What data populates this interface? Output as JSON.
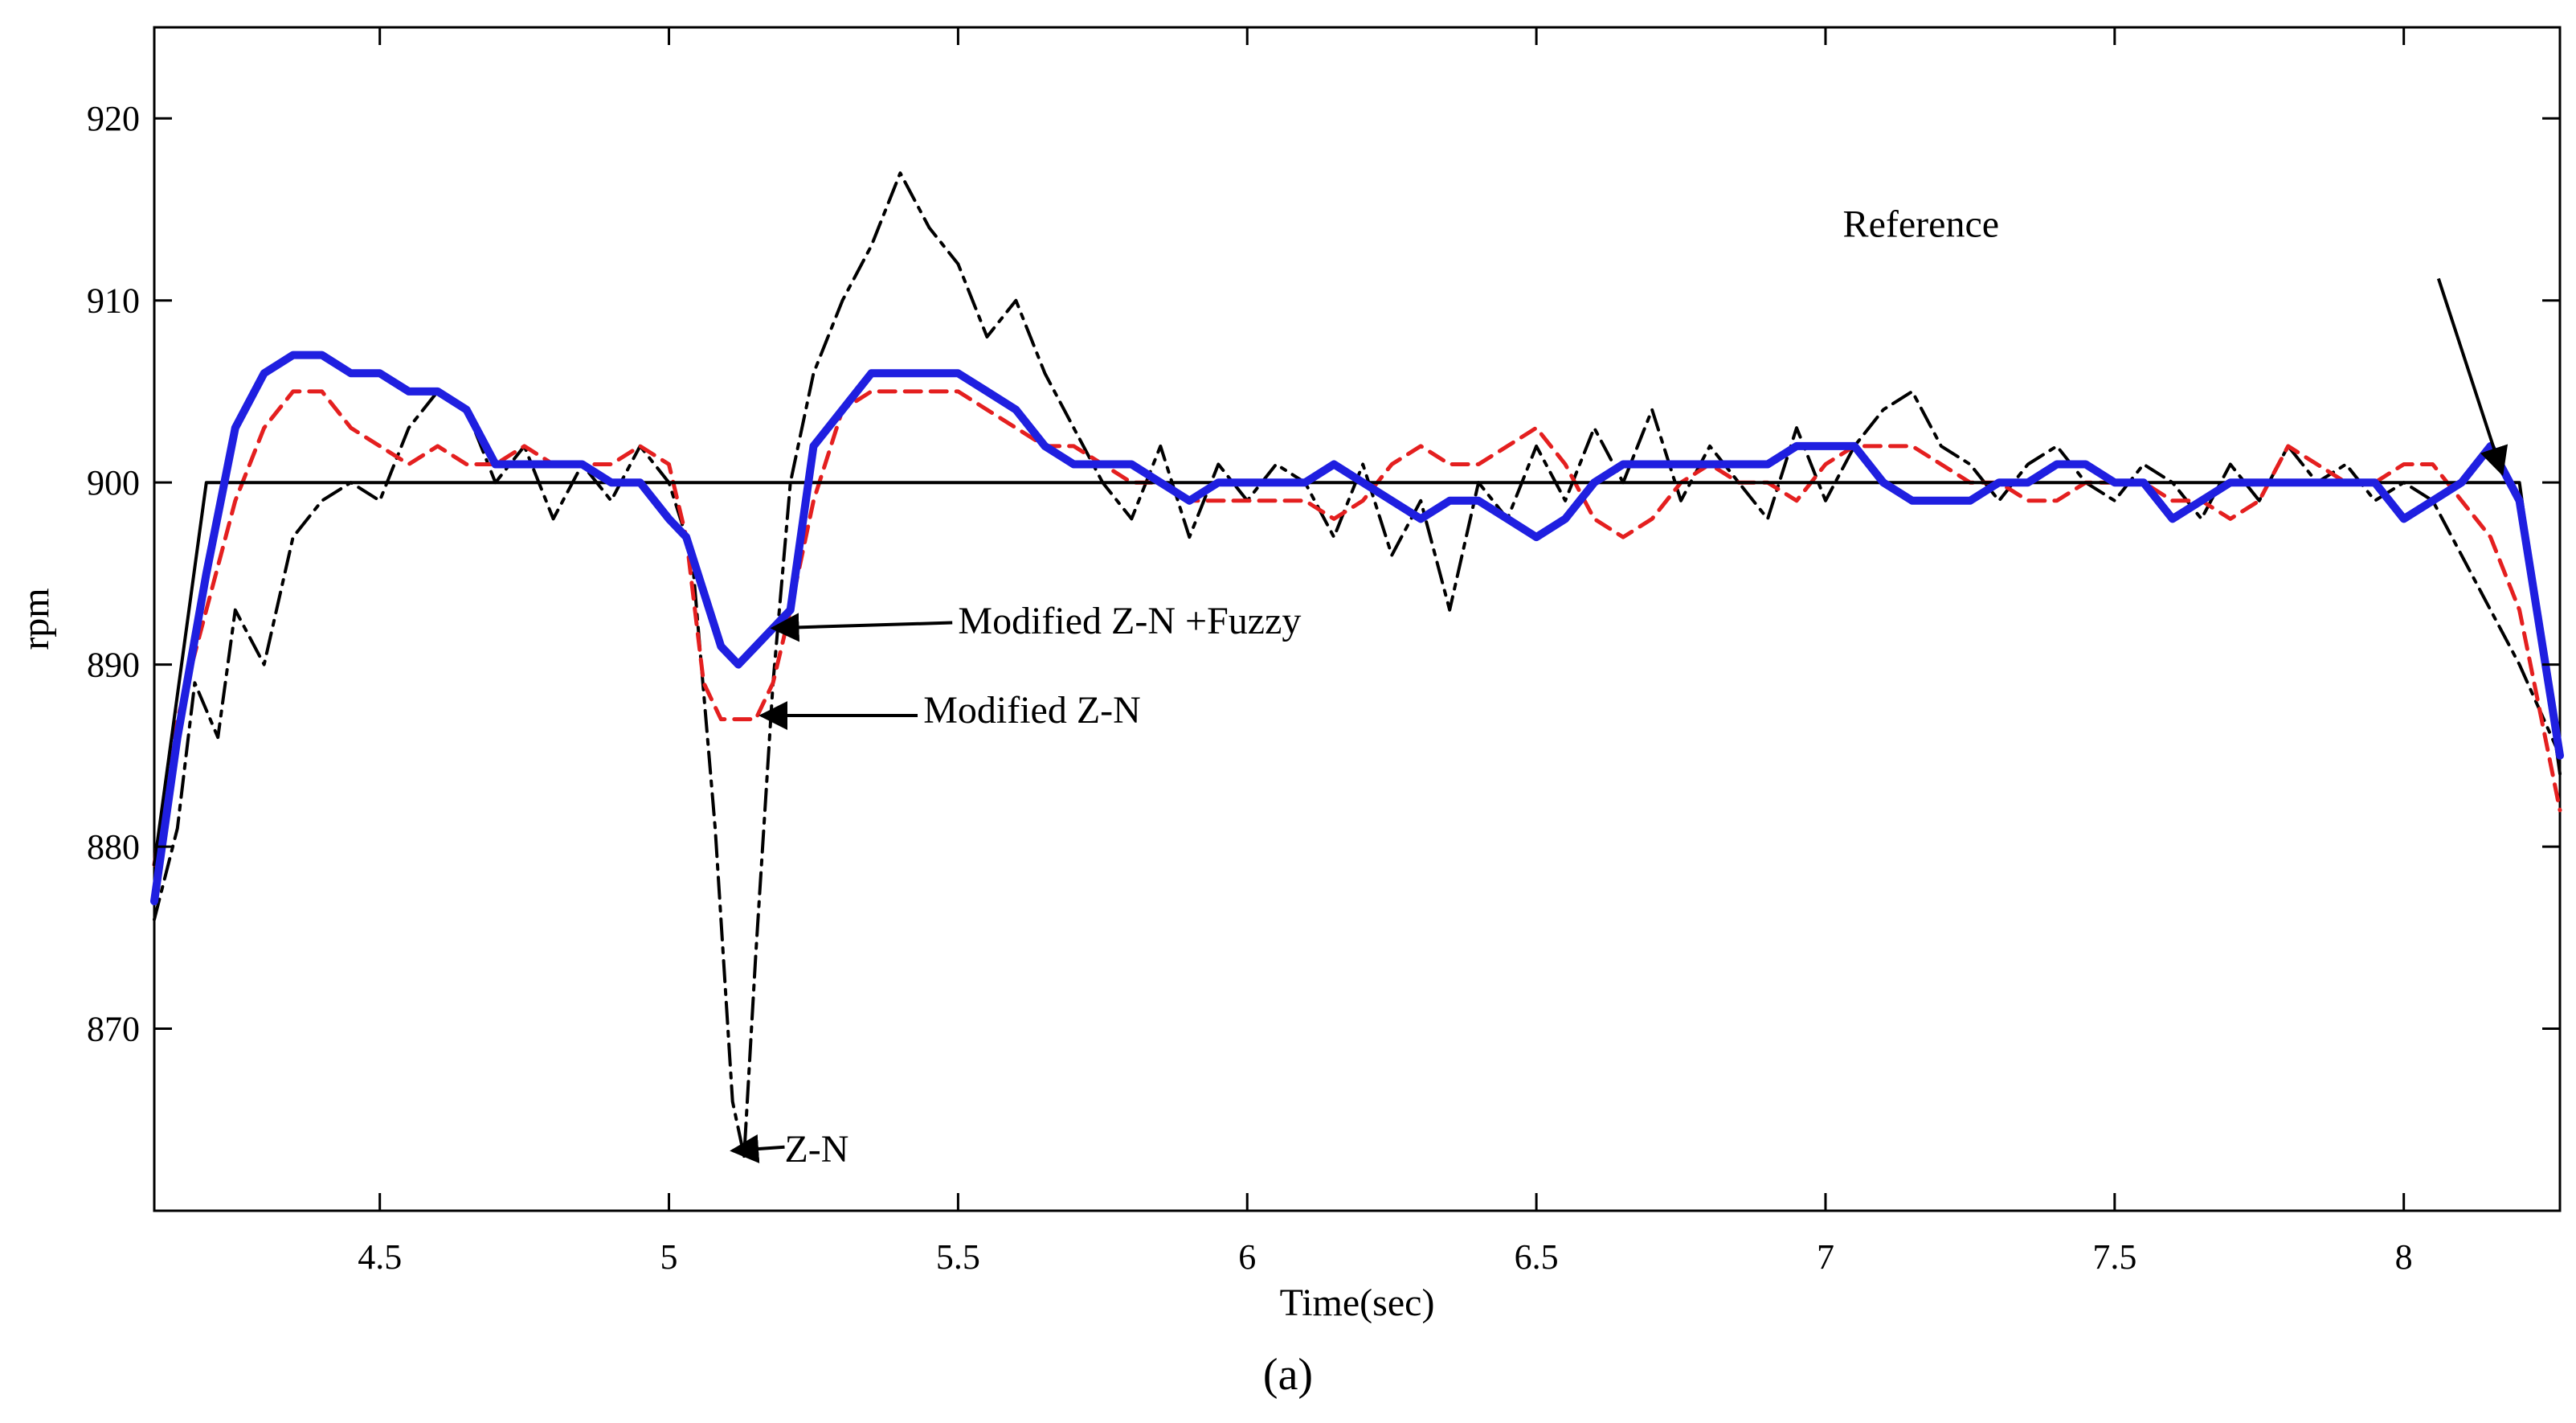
{
  "chart_data": {
    "type": "line",
    "title": "",
    "xlabel": "Time(sec)",
    "ylabel": "rpm",
    "caption": "(a)",
    "xlim": [
      4.11,
      8.27
    ],
    "ylim": [
      860,
      925
    ],
    "grid": false,
    "xticks": [
      4.5,
      5,
      5.5,
      6,
      6.5,
      7,
      7.5,
      8
    ],
    "xtick_labels": [
      "4.5",
      "5",
      "5.5",
      "6",
      "6.5",
      "7",
      "7.5",
      "8"
    ],
    "yticks": [
      870,
      880,
      890,
      900,
      910,
      920
    ],
    "ytick_labels": [
      "870",
      "880",
      "890",
      "900",
      "910",
      "920"
    ],
    "series": [
      {
        "name": "Reference",
        "color": "#000000",
        "style": "solid",
        "x": [
          4.11,
          4.2,
          8.2,
          8.27
        ],
        "y": [
          879,
          900,
          900,
          884
        ]
      },
      {
        "name": "Z-N",
        "color": "#000000",
        "style": "dashdot",
        "x": [
          4.11,
          4.15,
          4.18,
          4.22,
          4.25,
          4.3,
          4.35,
          4.4,
          4.45,
          4.5,
          4.55,
          4.6,
          4.65,
          4.7,
          4.75,
          4.8,
          4.85,
          4.9,
          4.95,
          5.0,
          5.04,
          5.08,
          5.11,
          5.13,
          5.15,
          5.18,
          5.21,
          5.25,
          5.3,
          5.35,
          5.4,
          5.45,
          5.5,
          5.55,
          5.6,
          5.65,
          5.7,
          5.75,
          5.8,
          5.85,
          5.9,
          5.95,
          6.0,
          6.05,
          6.1,
          6.15,
          6.2,
          6.25,
          6.3,
          6.35,
          6.4,
          6.45,
          6.5,
          6.55,
          6.6,
          6.65,
          6.7,
          6.75,
          6.8,
          6.85,
          6.9,
          6.95,
          7.0,
          7.05,
          7.1,
          7.15,
          7.2,
          7.25,
          7.3,
          7.35,
          7.4,
          7.45,
          7.5,
          7.55,
          7.6,
          7.65,
          7.7,
          7.75,
          7.8,
          7.85,
          7.9,
          7.95,
          8.0,
          8.05,
          8.1,
          8.15,
          8.2,
          8.27
        ],
        "y": [
          876,
          881,
          889,
          886,
          893,
          890,
          897,
          899,
          900,
          899,
          903,
          905,
          904,
          900,
          902,
          898,
          901,
          899,
          902,
          900,
          896,
          881,
          866,
          863,
          874,
          889,
          900,
          906,
          910,
          913,
          917,
          914,
          912,
          908,
          910,
          906,
          903,
          900,
          898,
          902,
          897,
          901,
          899,
          901,
          900,
          897,
          901,
          896,
          899,
          893,
          900,
          898,
          902,
          899,
          903,
          900,
          904,
          899,
          902,
          900,
          898,
          903,
          899,
          902,
          904,
          905,
          902,
          901,
          899,
          901,
          902,
          900,
          899,
          901,
          900,
          898,
          901,
          899,
          902,
          900,
          901,
          899,
          900,
          899,
          896,
          893,
          890,
          885
        ]
      },
      {
        "name": "Modified Z-N",
        "color": "#e41f1f",
        "style": "dashed",
        "x": [
          4.11,
          4.15,
          4.2,
          4.25,
          4.3,
          4.35,
          4.4,
          4.45,
          4.5,
          4.55,
          4.6,
          4.65,
          4.7,
          4.75,
          4.8,
          4.85,
          4.9,
          4.95,
          5.0,
          5.03,
          5.06,
          5.09,
          5.12,
          5.15,
          5.18,
          5.21,
          5.25,
          5.3,
          5.35,
          5.4,
          5.45,
          5.5,
          5.55,
          5.6,
          5.65,
          5.7,
          5.75,
          5.8,
          5.85,
          5.9,
          5.95,
          6.0,
          6.05,
          6.1,
          6.15,
          6.2,
          6.25,
          6.3,
          6.35,
          6.4,
          6.45,
          6.5,
          6.55,
          6.6,
          6.65,
          6.7,
          6.75,
          6.8,
          6.85,
          6.9,
          6.95,
          7.0,
          7.05,
          7.1,
          7.15,
          7.2,
          7.25,
          7.3,
          7.35,
          7.4,
          7.45,
          7.5,
          7.55,
          7.6,
          7.65,
          7.7,
          7.75,
          7.8,
          7.85,
          7.9,
          7.95,
          8.0,
          8.05,
          8.1,
          8.15,
          8.2,
          8.27
        ],
        "y": [
          879,
          887,
          893,
          899,
          903,
          905,
          905,
          903,
          902,
          901,
          902,
          901,
          901,
          902,
          901,
          901,
          901,
          902,
          901,
          897,
          889,
          887,
          887,
          887,
          889,
          893,
          899,
          904,
          905,
          905,
          905,
          905,
          904,
          903,
          902,
          902,
          901,
          900,
          900,
          899,
          899,
          899,
          899,
          899,
          898,
          899,
          901,
          902,
          901,
          901,
          902,
          903,
          901,
          898,
          897,
          898,
          900,
          901,
          900,
          900,
          899,
          901,
          902,
          902,
          902,
          901,
          900,
          900,
          899,
          899,
          900,
          900,
          900,
          899,
          899,
          898,
          899,
          902,
          901,
          900,
          900,
          901,
          901,
          899,
          897,
          893,
          882
        ]
      },
      {
        "name": "Modified Z-N +Fuzzy",
        "color": "#1f1fe0",
        "style": "solid-thick",
        "x": [
          4.11,
          4.15,
          4.2,
          4.25,
          4.3,
          4.35,
          4.4,
          4.45,
          4.5,
          4.55,
          4.6,
          4.65,
          4.7,
          4.75,
          4.8,
          4.85,
          4.9,
          4.95,
          5.0,
          5.03,
          5.06,
          5.09,
          5.12,
          5.15,
          5.18,
          5.21,
          5.25,
          5.3,
          5.35,
          5.4,
          5.45,
          5.5,
          5.55,
          5.6,
          5.65,
          5.7,
          5.75,
          5.8,
          5.85,
          5.9,
          5.95,
          6.0,
          6.05,
          6.1,
          6.15,
          6.2,
          6.25,
          6.3,
          6.35,
          6.4,
          6.45,
          6.5,
          6.55,
          6.6,
          6.65,
          6.7,
          6.75,
          6.8,
          6.85,
          6.9,
          6.95,
          7.0,
          7.05,
          7.1,
          7.15,
          7.2,
          7.25,
          7.3,
          7.35,
          7.4,
          7.45,
          7.5,
          7.55,
          7.6,
          7.65,
          7.7,
          7.75,
          7.8,
          7.85,
          7.9,
          7.95,
          8.0,
          8.05,
          8.1,
          8.15,
          8.2,
          8.27
        ],
        "y": [
          877,
          886,
          895,
          903,
          906,
          907,
          907,
          906,
          906,
          905,
          905,
          904,
          901,
          901,
          901,
          901,
          900,
          900,
          898,
          897,
          894,
          891,
          890,
          891,
          892,
          893,
          902,
          904,
          906,
          906,
          906,
          906,
          905,
          904,
          902,
          901,
          901,
          901,
          900,
          899,
          900,
          900,
          900,
          900,
          901,
          900,
          899,
          898,
          899,
          899,
          898,
          897,
          898,
          900,
          901,
          901,
          901,
          901,
          901,
          901,
          902,
          902,
          902,
          900,
          899,
          899,
          899,
          900,
          900,
          901,
          901,
          900,
          900,
          898,
          899,
          900,
          900,
          900,
          900,
          900,
          900,
          898,
          899,
          900,
          902,
          899,
          885
        ]
      }
    ],
    "annotations": [
      {
        "text": "Reference",
        "x": 7.03,
        "y": 913.5,
        "arrow_to": [
          8.17,
          900.5
        ],
        "arrow_from": [
          8.06,
          911.2
        ]
      },
      {
        "text": "Modified Z-N +Fuzzy",
        "x": 5.5,
        "y": 891.7,
        "arrow_to": [
          5.18,
          892.0
        ],
        "arrow_from": [
          5.49,
          892.3
        ]
      },
      {
        "text": "Modified  Z-N",
        "x": 5.44,
        "y": 886.8,
        "arrow_to": [
          5.16,
          887.2
        ],
        "arrow_from": [
          5.43,
          887.2
        ]
      },
      {
        "text": "Z-N",
        "x": 5.2,
        "y": 862.7,
        "arrow_to": [
          5.11,
          863.3
        ],
        "arrow_from": [
          5.2,
          863.5
        ]
      }
    ],
    "colors": {
      "axis": "#000000",
      "background": "#ffffff"
    }
  }
}
